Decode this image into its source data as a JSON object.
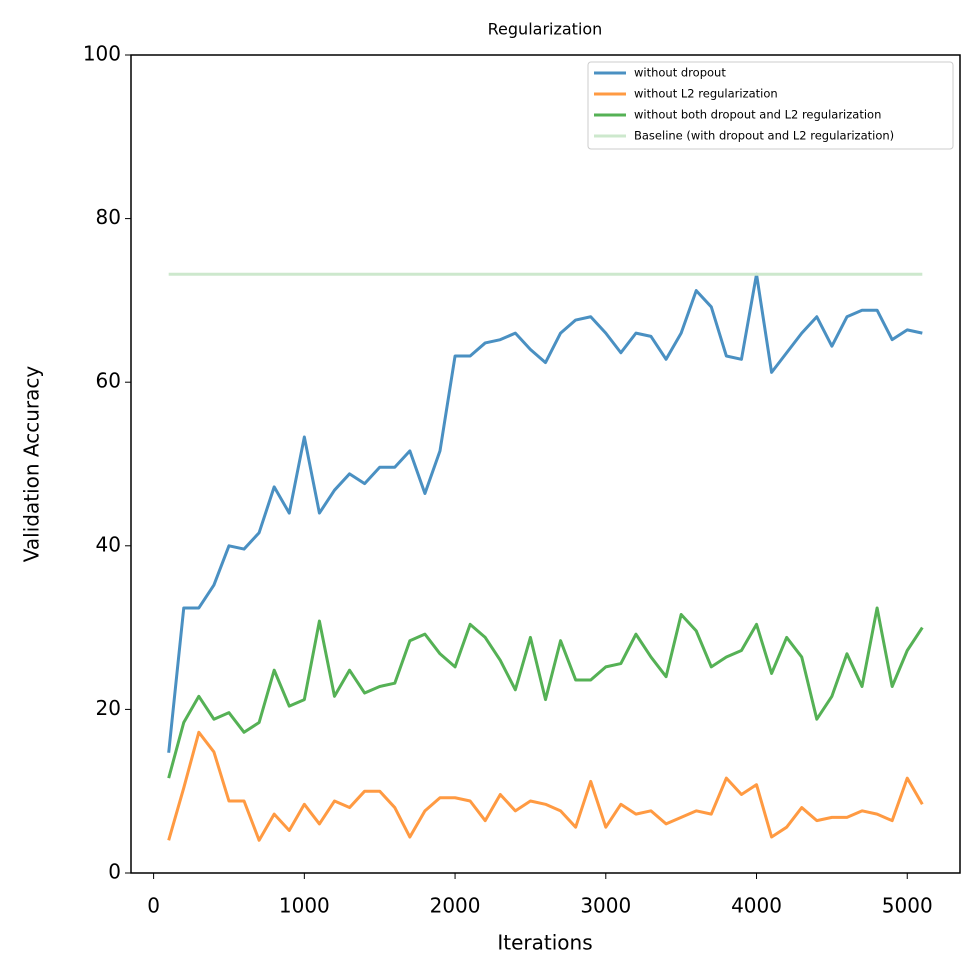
{
  "chart_data": {
    "type": "line",
    "title": "Regularization",
    "xlabel": "Iterations",
    "ylabel": "Validation Accuracy",
    "x": [
      100,
      200,
      300,
      400,
      500,
      600,
      700,
      800,
      900,
      1000,
      1100,
      1200,
      1300,
      1400,
      1500,
      1600,
      1700,
      1800,
      1900,
      2000,
      2100,
      2200,
      2300,
      2400,
      2500,
      2600,
      2700,
      2800,
      2900,
      3000,
      3100,
      3200,
      3300,
      3400,
      3500,
      3600,
      3700,
      3800,
      3900,
      4000,
      4100,
      4200,
      4300,
      4400,
      4500,
      4600,
      4700,
      4800,
      4900,
      5000,
      5100
    ],
    "series": [
      {
        "name": "without dropout",
        "color": "#4a90c2",
        "values": [
          14.7,
          32.4,
          32.4,
          35.2,
          40.0,
          39.6,
          41.6,
          47.2,
          44.0,
          53.3,
          44.0,
          46.8,
          48.8,
          47.6,
          49.6,
          49.6,
          51.6,
          46.4,
          51.6,
          63.2,
          63.2,
          64.8,
          65.2,
          66.0,
          64.0,
          62.4,
          66.0,
          67.6,
          68.0,
          66.0,
          63.6,
          66.0,
          65.6,
          62.8,
          66.0,
          71.2,
          69.2,
          63.2,
          62.8,
          73.2,
          61.2,
          63.6,
          66.0,
          68.0,
          64.4,
          68.0,
          68.8,
          68.8,
          65.2,
          66.4,
          66.0
        ]
      },
      {
        "name": "without L2 regularization",
        "color": "#ff9a42",
        "values": [
          4.0,
          10.4,
          17.2,
          14.8,
          8.8,
          8.8,
          4.0,
          7.2,
          5.2,
          8.4,
          6.0,
          8.8,
          8.0,
          10.0,
          10.0,
          8.0,
          4.4,
          7.6,
          9.2,
          9.2,
          8.8,
          6.4,
          9.6,
          7.6,
          8.8,
          8.4,
          7.6,
          5.6,
          11.2,
          5.6,
          8.4,
          7.2,
          7.6,
          6.0,
          6.8,
          7.6,
          7.2,
          11.6,
          9.6,
          10.8,
          4.4,
          5.6,
          8.0,
          6.4,
          6.8,
          6.8,
          7.6,
          7.2,
          6.4,
          11.6,
          8.4
        ]
      },
      {
        "name": "without both dropout and L2 regularization",
        "color": "#55b155",
        "values": [
          11.6,
          18.4,
          21.6,
          18.8,
          19.6,
          17.2,
          18.4,
          24.8,
          20.4,
          21.2,
          30.8,
          21.6,
          24.8,
          22.0,
          22.8,
          23.2,
          28.4,
          29.2,
          26.8,
          25.2,
          30.4,
          28.8,
          26.0,
          22.4,
          28.8,
          21.2,
          28.4,
          23.6,
          23.6,
          25.2,
          25.6,
          29.2,
          26.4,
          24.0,
          31.6,
          29.6,
          25.2,
          26.4,
          27.2,
          30.4,
          24.4,
          28.8,
          26.4,
          18.8,
          21.6,
          26.8,
          22.8,
          32.4,
          22.8,
          27.2,
          30.0
        ]
      },
      {
        "name": "Baseline (with dropout and L2 regularization)",
        "color": "#cde8cd",
        "values": [
          73.2,
          73.2,
          73.2,
          73.2,
          73.2,
          73.2,
          73.2,
          73.2,
          73.2,
          73.2,
          73.2,
          73.2,
          73.2,
          73.2,
          73.2,
          73.2,
          73.2,
          73.2,
          73.2,
          73.2,
          73.2,
          73.2,
          73.2,
          73.2,
          73.2,
          73.2,
          73.2,
          73.2,
          73.2,
          73.2,
          73.2,
          73.2,
          73.2,
          73.2,
          73.2,
          73.2,
          73.2,
          73.2,
          73.2,
          73.2,
          73.2,
          73.2,
          73.2,
          73.2,
          73.2,
          73.2,
          73.2,
          73.2,
          73.2,
          73.2,
          73.2
        ]
      }
    ],
    "xlim": [
      -150,
      5350
    ],
    "xticks": [
      0,
      1000,
      2000,
      3000,
      4000,
      5000
    ],
    "ylim": [
      0,
      100
    ],
    "yticks": [
      0,
      20,
      40,
      60,
      80,
      100
    ],
    "grid": false,
    "legend": "upper right"
  }
}
